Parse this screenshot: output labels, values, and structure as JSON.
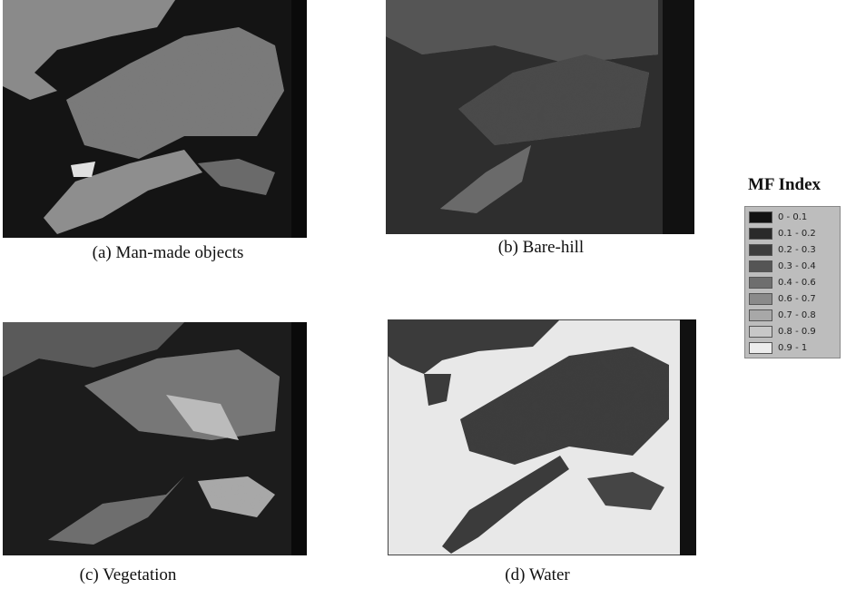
{
  "panels": [
    {
      "caption": "(a) Man-made objects"
    },
    {
      "caption": "(b) Bare-hill"
    },
    {
      "caption": "(c) Vegetation"
    },
    {
      "caption": "(d) Water"
    }
  ],
  "legend": {
    "title": "MF Index",
    "items": [
      {
        "label": "0 - 0.1",
        "color": "#111111"
      },
      {
        "label": "0.1 - 0.2",
        "color": "#2a2a2a"
      },
      {
        "label": "0.2 - 0.3",
        "color": "#3d3d3d"
      },
      {
        "label": "0.3 - 0.4",
        "color": "#555555"
      },
      {
        "label": "0.4 - 0.6",
        "color": "#6e6e6e"
      },
      {
        "label": "0.6 - 0.7",
        "color": "#8a8a8a"
      },
      {
        "label": "0.7 - 0.8",
        "color": "#a8a8a8"
      },
      {
        "label": "0.8 - 0.9",
        "color": "#c8c8c8"
      },
      {
        "label": "0.9 - 1",
        "color": "#ececec"
      }
    ]
  }
}
